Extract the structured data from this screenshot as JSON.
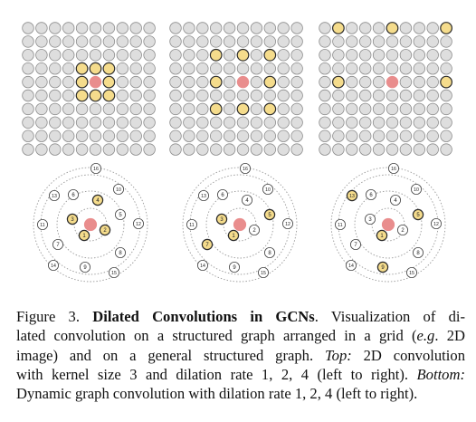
{
  "colors": {
    "node_fill": "#dedede",
    "node_stroke": "#8c8c8c",
    "center_fill": "#e98d8d",
    "neighbor_fill": "#f5dc8c",
    "neighbor_stroke": "#2b2b2b",
    "ring_stroke": "#9a9a9a"
  },
  "grids": [
    {
      "dilation": 1,
      "highlight": [
        [
          3,
          4
        ],
        [
          3,
          5
        ],
        [
          3,
          6
        ],
        [
          4,
          4
        ],
        [
          4,
          6
        ],
        [
          5,
          4
        ],
        [
          5,
          5
        ],
        [
          5,
          6
        ]
      ],
      "center": [
        4,
        5
      ]
    },
    {
      "dilation": 2,
      "highlight": [
        [
          2,
          3
        ],
        [
          2,
          5
        ],
        [
          2,
          7
        ],
        [
          4,
          3
        ],
        [
          4,
          7
        ],
        [
          6,
          3
        ],
        [
          6,
          5
        ],
        [
          6,
          7
        ]
      ],
      "center": [
        4,
        5
      ]
    },
    {
      "dilation": 4,
      "highlight": [
        [
          0,
          1
        ],
        [
          0,
          5
        ],
        [
          0,
          9
        ],
        [
          4,
          1
        ],
        [
          4,
          9
        ]
      ],
      "center": [
        4,
        5
      ]
    }
  ],
  "graphs": [
    {
      "dilation": 1,
      "highlighted": [
        "1",
        "2",
        "3",
        "4"
      ]
    },
    {
      "dilation": 2,
      "highlighted": [
        "1",
        "3",
        "5",
        "7"
      ]
    },
    {
      "dilation": 4,
      "highlighted": [
        "1",
        "5",
        "9",
        "13"
      ]
    }
  ],
  "graph_node_labels": [
    "1",
    "2",
    "3",
    "4",
    "5",
    "6",
    "7",
    "8",
    "9",
    "10",
    "11",
    "12",
    "13",
    "14",
    "15",
    "16"
  ],
  "caption": {
    "line1_label": "Figure 3.",
    "line1_title": "Dilated Convolutions in GCNs",
    "line1_rest": ". Visualization of di-",
    "line2_a": "lated convolution on a structured graph arranged in a grid (",
    "line2_eg": "e.g",
    "line2_b": ". 2D",
    "line3": "image) and on a general structured graph.",
    "line3_top": "Top:",
    "line3_rest": "2D convolution",
    "line4_a": "with kernel size 3 and dilation rate 1, 2, 4 (left to right).",
    "line4_bottom": "Bottom:",
    "line5": "Dynamic graph convolution with dilation rate 1, 2, 4 (left to right)."
  }
}
